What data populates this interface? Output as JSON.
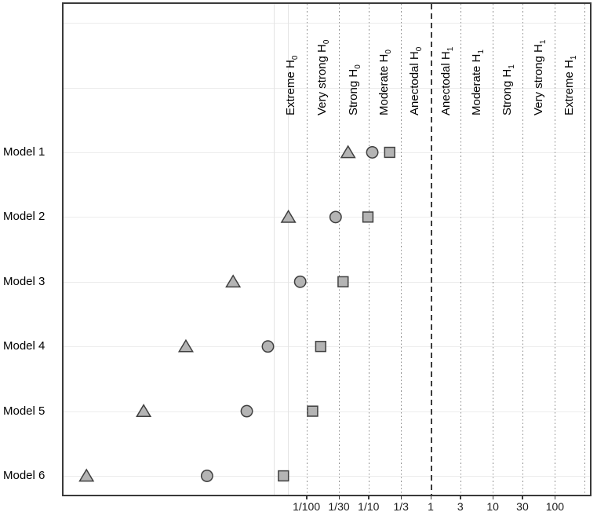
{
  "chart_data": {
    "type": "scatter",
    "title": "",
    "description": "Horizontal dot-plot of Bayes factors per model with evidence-category bands",
    "x_axis": {
      "scale": "log10",
      "label": "",
      "ticks": [
        {
          "label": "1/100",
          "log10": -2.0
        },
        {
          "label": "1/30",
          "log10": -1.477
        },
        {
          "label": "1/10",
          "log10": -1.0
        },
        {
          "label": "1/3",
          "log10": -0.477
        },
        {
          "label": "1",
          "log10": 0.0
        },
        {
          "label": "3",
          "log10": 0.477
        },
        {
          "label": "10",
          "log10": 1.0
        },
        {
          "label": "30",
          "log10": 1.477
        },
        {
          "label": "100",
          "log10": 2.0
        }
      ],
      "dotted_gridlines_log10": [
        -2.0,
        -1.477,
        -1.0,
        -0.477,
        0.477,
        1.0,
        1.477,
        2.0,
        2.477
      ],
      "minor_gridlines_log10": [
        -2.523,
        -2.301
      ],
      "dashed_reference_line_log10": 0.0,
      "range_log10": [
        -5.95,
        2.6
      ]
    },
    "y_axis": {
      "categories": [
        "Model 1",
        "Model 2",
        "Model 3",
        "Model 4",
        "Model 5",
        "Model 6"
      ],
      "gridline_slots": 8
    },
    "regions": [
      {
        "text": "Extreme H",
        "sub": "0",
        "center_log10": -2.25
      },
      {
        "text": "Very strong H",
        "sub": "0",
        "center_log10": -1.74
      },
      {
        "text": "Strong H",
        "sub": "0",
        "center_log10": -1.24
      },
      {
        "text": "Moderate H",
        "sub": "0",
        "center_log10": -0.74
      },
      {
        "text": "Anectodal H",
        "sub": "0",
        "center_log10": -0.25
      },
      {
        "text": "Anectodal H",
        "sub": "1",
        "center_log10": 0.25
      },
      {
        "text": "Moderate H",
        "sub": "1",
        "center_log10": 0.74
      },
      {
        "text": "Strong H",
        "sub": "1",
        "center_log10": 1.24
      },
      {
        "text": "Very strong H",
        "sub": "1",
        "center_log10": 1.74
      },
      {
        "text": "Extreme H",
        "sub": "1",
        "center_log10": 2.24
      }
    ],
    "series": [
      {
        "marker": "triangle",
        "name": "triangle-series",
        "log10_bf": [
          -1.33,
          -2.29,
          -3.18,
          -3.94,
          -4.62,
          -5.54
        ],
        "bf_approx": [
          0.047,
          0.0051,
          0.00066,
          0.000115,
          2.4e-05,
          2.9e-06
        ]
      },
      {
        "marker": "circle",
        "name": "circle-series",
        "log10_bf": [
          -0.94,
          -1.53,
          -2.1,
          -2.62,
          -2.96,
          -3.6
        ],
        "bf_approx": [
          0.115,
          0.03,
          0.0079,
          0.0024,
          0.0011,
          0.00025
        ]
      },
      {
        "marker": "square",
        "name": "square-series",
        "log10_bf": [
          -0.66,
          -1.01,
          -1.41,
          -1.77,
          -1.9,
          -2.37
        ],
        "bf_approx": [
          0.22,
          0.098,
          0.04,
          0.017,
          0.0126,
          0.0043
        ]
      }
    ]
  },
  "style": {
    "marker_fill": "#b4b4b4",
    "marker_stroke": "#3f3f3f",
    "dashed_line_color": "#3c3c3c",
    "dotted_grid_color": "#8f8f8f",
    "light_grid_color": "#ececec",
    "border_color": "#3a3a3a",
    "background": "#ffffff"
  }
}
